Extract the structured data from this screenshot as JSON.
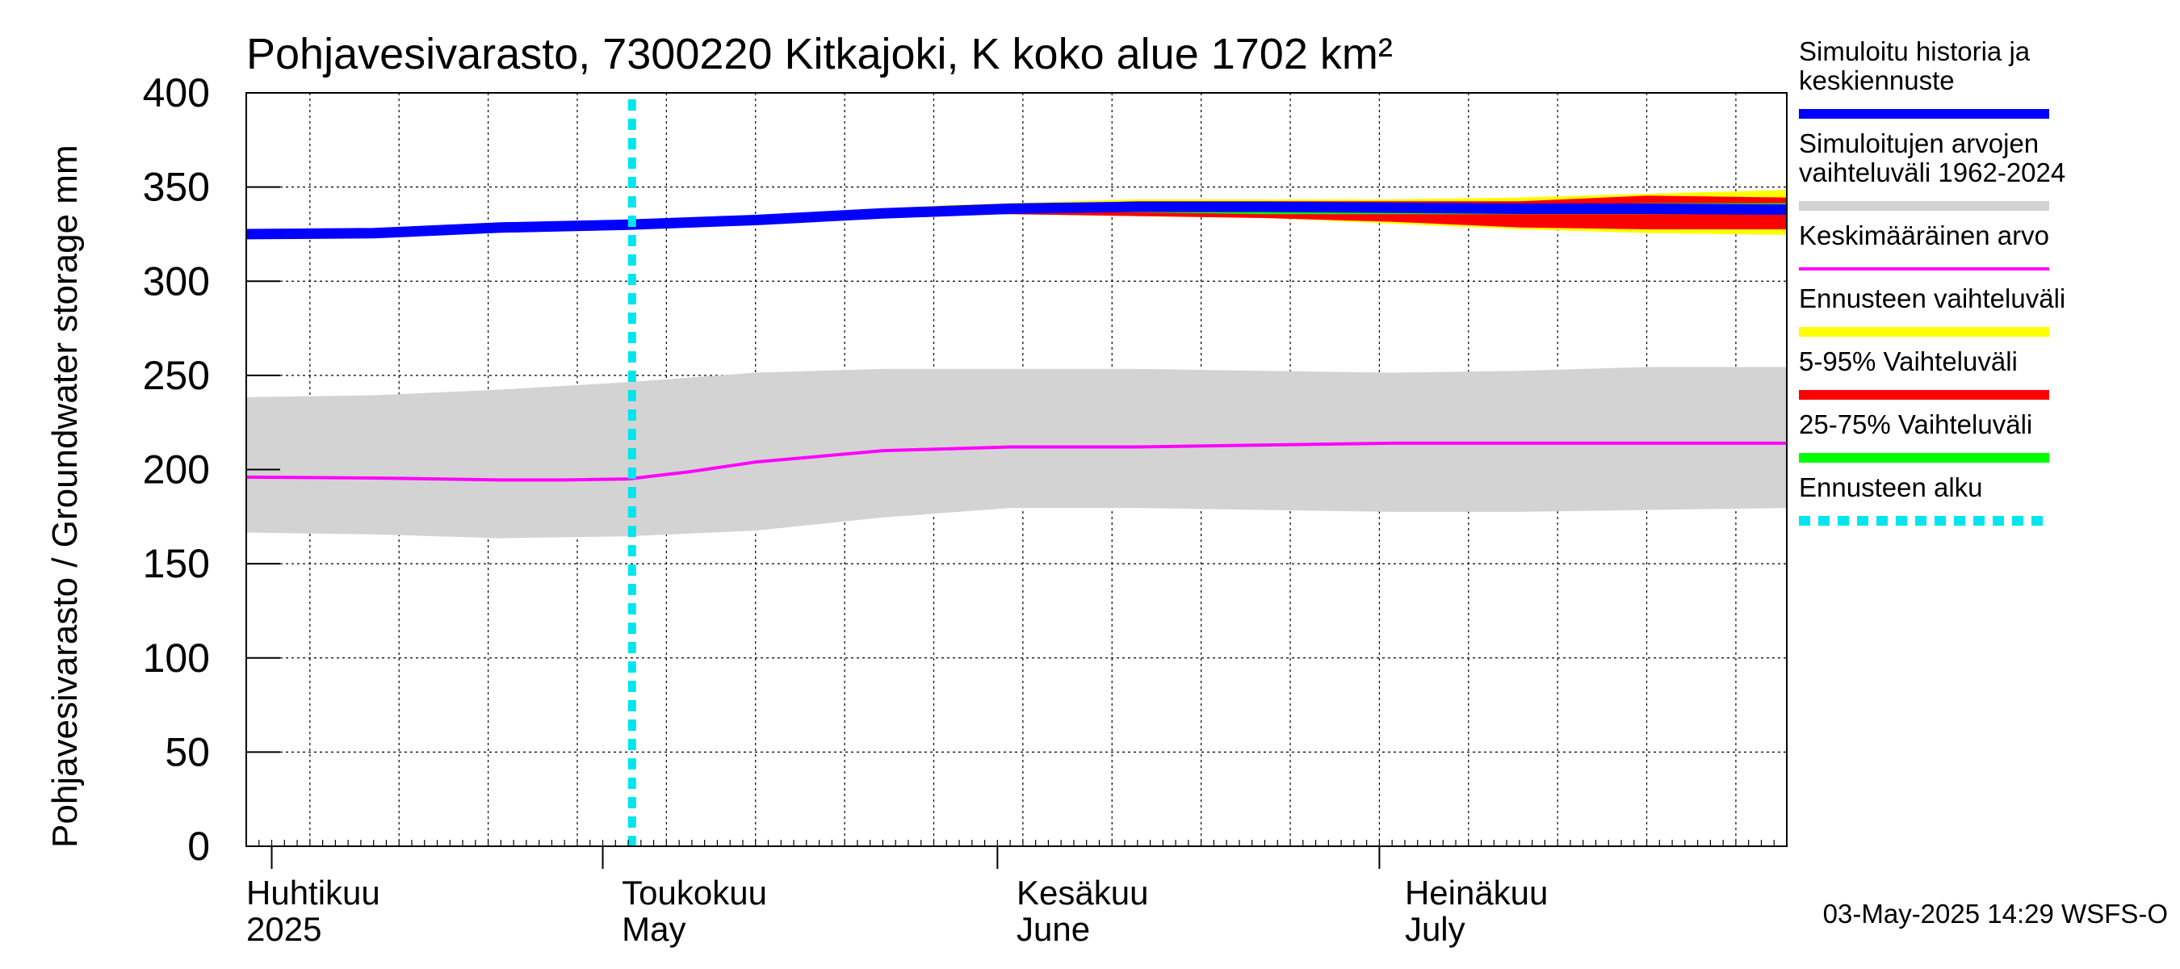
{
  "chart_data": {
    "type": "area",
    "title": "Pohjavesivarasto, 7300220 Kitkajoki, K koko alue 1702 km²",
    "ylabel": "Pohjavesivarasto / Groundwater storage   mm",
    "ylim": [
      0,
      400
    ],
    "yticks": [
      0,
      50,
      100,
      150,
      200,
      250,
      300,
      350,
      400
    ],
    "grid": true,
    "xlim_day": [
      0,
      121
    ],
    "month_ticks": [
      {
        "day": 2,
        "fi": "Huhtikuu",
        "en": "2025",
        "label_day": 0
      },
      {
        "day": 28,
        "fi": "Toukokuu",
        "en": "May",
        "label_day": 29.5
      },
      {
        "day": 59,
        "fi": "Kesäkuu",
        "en": "June",
        "label_day": 60.5
      },
      {
        "day": 89,
        "fi": "Heinäkuu",
        "en": "July",
        "label_day": 91
      }
    ],
    "forecast_start_day": 30.3,
    "timestamp": "03-May-2025 14:29 WSFS-O",
    "series": [
      {
        "name": "Simuloitujen arvojen vaihteluväli 1962-2024",
        "kind": "band",
        "color": "#d3d3d3",
        "x": [
          0,
          10,
          20,
          30,
          40,
          50,
          60,
          70,
          80,
          90,
          100,
          110,
          121
        ],
        "low": [
          167,
          166,
          164,
          165,
          168,
          175,
          180,
          180,
          179,
          178,
          178,
          179,
          180
        ],
        "high": [
          238,
          239,
          242,
          246,
          251,
          253,
          253,
          253,
          252,
          251,
          252,
          254,
          254
        ]
      },
      {
        "name": "Keskimääräinen arvo",
        "kind": "line",
        "color": "#ff00ff",
        "width": 4,
        "x": [
          0,
          10,
          20,
          25,
          30,
          35,
          40,
          50,
          60,
          70,
          80,
          90,
          100,
          110,
          121
        ],
        "y": [
          196,
          195.5,
          194.5,
          194.5,
          195,
          199,
          204,
          210,
          212,
          212,
          213,
          214,
          214,
          214,
          214
        ]
      },
      {
        "name": "Ennusteen vaihteluväli",
        "kind": "band",
        "color": "#ffff00",
        "x": [
          30.3,
          40,
          50,
          55,
          60,
          70,
          80,
          90,
          100,
          110,
          121
        ],
        "low": [
          330,
          332,
          335,
          336,
          336,
          335,
          334,
          331,
          328,
          326,
          325
        ],
        "high": [
          330,
          333,
          338,
          340,
          341,
          343,
          343,
          343,
          344,
          346,
          348
        ]
      },
      {
        "name": "5-95% Vaihteluväli",
        "kind": "band",
        "color": "#ff0000",
        "x": [
          30.3,
          40,
          50,
          55,
          60,
          70,
          80,
          90,
          100,
          110,
          121
        ],
        "low": [
          330,
          332,
          335,
          336,
          336,
          335,
          334,
          332,
          329,
          328,
          328
        ],
        "high": [
          330,
          333,
          337,
          339,
          340,
          342,
          342,
          342,
          342,
          345,
          344
        ]
      },
      {
        "name": "25-75% Vaihteluväli",
        "kind": "band",
        "color": "#00ff00",
        "x": [
          30.3,
          40,
          50,
          55,
          60,
          70,
          80,
          90,
          100,
          110,
          121
        ],
        "low": [
          330,
          332,
          336,
          337,
          337,
          337,
          336,
          336,
          336,
          336,
          336
        ],
        "high": [
          330,
          332.5,
          337,
          338.5,
          339,
          340,
          340,
          340,
          340,
          341,
          341
        ]
      },
      {
        "name": "Simuloitu historia ja keskiennuste",
        "kind": "line",
        "color": "#0000ff",
        "width": 13,
        "x": [
          0,
          10,
          20,
          30,
          40,
          50,
          60,
          70,
          80,
          90,
          100,
          110,
          121
        ],
        "y": [
          325,
          325.5,
          328.5,
          330,
          332.5,
          336,
          338.5,
          339.5,
          339.5,
          339,
          338.5,
          338.5,
          338
        ]
      },
      {
        "name": "Ennusteen alku",
        "kind": "vline",
        "color": "#00e5ee",
        "x_day": 30.3
      }
    ]
  },
  "legend": [
    {
      "label": "Simuloitu historia ja\nkeskiennuste",
      "color": "#0000ff",
      "style": "thick"
    },
    {
      "label": "Simuloitujen arvojen\nvaihteluväli 1962-2024",
      "color": "#d3d3d3",
      "style": "thick"
    },
    {
      "label": "Keskimääräinen arvo",
      "color": "#ff00ff",
      "style": "thin"
    },
    {
      "label": "Ennusteen vaihteluväli",
      "color": "#ffff00",
      "style": "thick"
    },
    {
      "label": "5-95% Vaihteluväli",
      "color": "#ff0000",
      "style": "thick"
    },
    {
      "label": "25-75% Vaihteluväli",
      "color": "#00ff00",
      "style": "thick"
    },
    {
      "label": "Ennusteen alku",
      "color": "#00e5ee",
      "style": "dotted"
    }
  ]
}
